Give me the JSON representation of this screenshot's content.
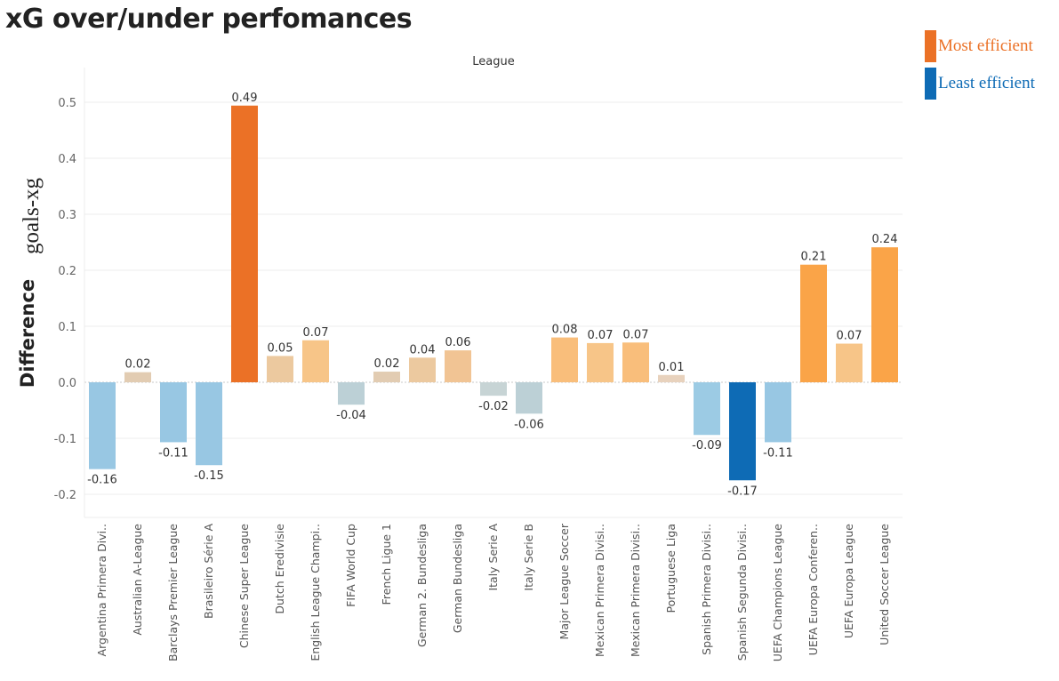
{
  "title": "xG over/under perfomances",
  "legend": [
    {
      "label": "Most efficient",
      "color": "#EB7126"
    },
    {
      "label": "Least efficient",
      "color": "#0E6BB5"
    }
  ],
  "chart_data": {
    "type": "bar",
    "header": "League",
    "ylabel_bold": "Difference",
    "ylabel_serif": "goals-xg",
    "ylim": [
      -0.24,
      0.57
    ],
    "yticks": [
      -0.2,
      -0.1,
      0.0,
      0.1,
      0.2,
      0.3,
      0.4,
      0.5
    ],
    "ytick_labels": [
      "-0.2",
      "-0.1",
      "0.0",
      "0.1",
      "0.2",
      "0.3",
      "0.4",
      "0.5"
    ],
    "grid": true,
    "categories": [
      "Argentina Primera Divi..",
      "Australian A-League",
      "Barclays Premier League",
      "Brasileiro Série A",
      "Chinese Super League",
      "Dutch Eredivisie",
      "English League Champi..",
      "FIFA World Cup",
      "French Ligue 1",
      "German 2. Bundesliga",
      "German Bundesliga",
      "Italy Serie A",
      "Italy Serie B",
      "Major League Soccer",
      "Mexican Primera Divisi..",
      "Mexican Primera Divisi..",
      "Portuguese Liga",
      "Spanish Primera Divisi..",
      "Spanish Segunda Divisi..",
      "UEFA Champions League",
      "UEFA Europa Conferen..",
      "UEFA Europa League",
      "United Soccer League"
    ],
    "values": [
      -0.155,
      0.018,
      -0.107,
      -0.148,
      0.494,
      0.047,
      0.075,
      -0.04,
      0.019,
      0.044,
      0.057,
      -0.024,
      -0.056,
      0.08,
      0.07,
      0.071,
      0.013,
      -0.094,
      -0.175,
      -0.107,
      0.21,
      0.069,
      0.241
    ],
    "value_labels": [
      "-0.16",
      "0.02",
      "-0.11",
      "-0.15",
      "0.49",
      "0.05",
      "0.07",
      "-0.04",
      "0.02",
      "0.04",
      "0.06",
      "-0.02",
      "-0.06",
      "0.08",
      "0.07",
      "0.07",
      "0.01",
      "-0.09",
      "-0.17",
      "-0.11",
      "0.21",
      "0.07",
      "0.24"
    ],
    "colors": [
      "#98C7E3",
      "#E2CCB2",
      "#98C7E3",
      "#98C7E3",
      "#EB7126",
      "#ECC99F",
      "#F7C588",
      "#BCD0D6",
      "#E2CCB2",
      "#ECC99F",
      "#F1C494",
      "#C7D4D5",
      "#BCD0D6",
      "#F9BE7B",
      "#F7C588",
      "#F9BE7B",
      "#E8D2BD",
      "#9CCBE4",
      "#0E6BB5",
      "#98C7E3",
      "#FAA448",
      "#F7C588",
      "#FAA448"
    ]
  }
}
